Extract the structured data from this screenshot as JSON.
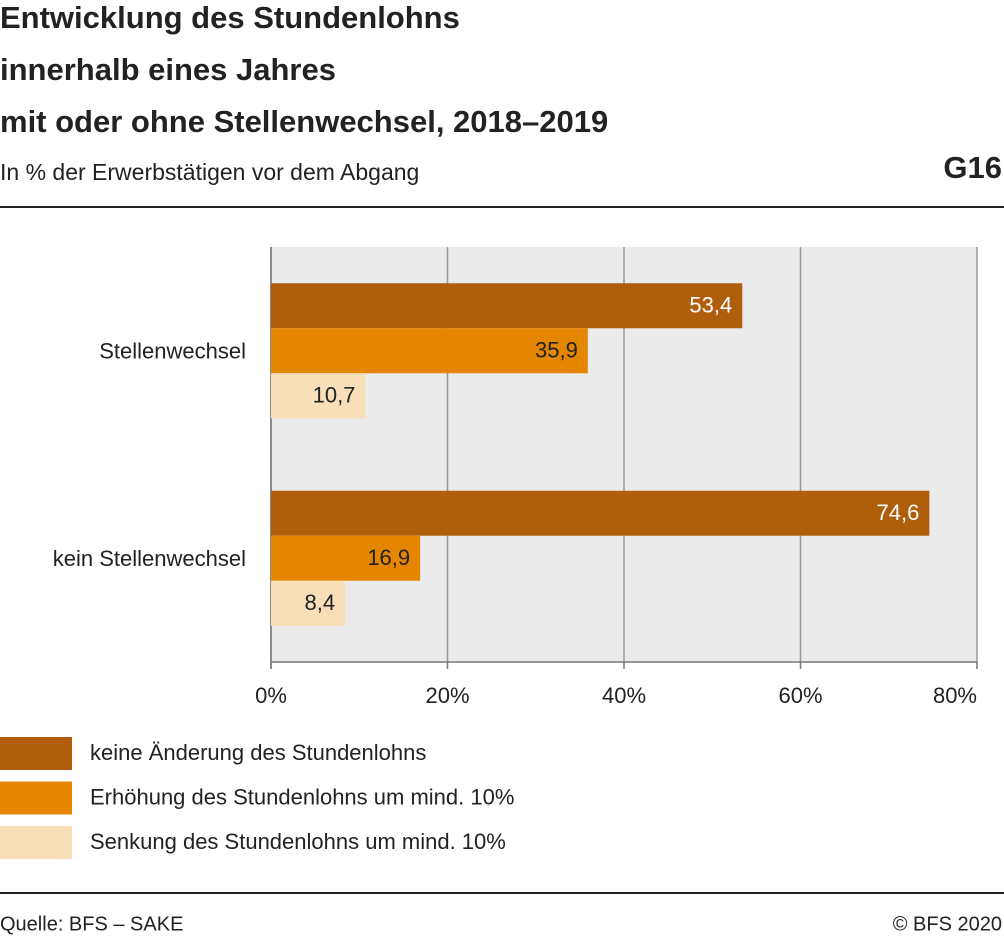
{
  "chart_data": {
    "type": "barh",
    "title": [
      "Entwicklung des Stundenlohns",
      "innerhalb eines Jahres",
      "mit oder ohne Stellenwechsel, 2018–2019"
    ],
    "subtitle": "In % der Erwerbstätigen vor dem Abgang",
    "chart_id": "G16",
    "categories": [
      "Stellenwechsel",
      "kein Stellenwechsel"
    ],
    "series": [
      {
        "name": "keine Änderung des Stundenlohns",
        "color": "#b05e0b",
        "label_color": "#ffffff",
        "values": [
          53.4,
          74.6
        ],
        "value_labels": [
          "53,4",
          "74,6"
        ]
      },
      {
        "name": "Erhöhung des Stundenlohns um mind. 10%",
        "color": "#e58600",
        "label_color": "#222222",
        "values": [
          35.9,
          16.9
        ],
        "value_labels": [
          "35,9",
          "16,9"
        ]
      },
      {
        "name": "Senkung des Stundenlohns um mind. 10%",
        "color": "#f8dfba",
        "label_color": "#222222",
        "values": [
          10.7,
          8.4
        ],
        "value_labels": [
          "10,7",
          "8,4"
        ]
      }
    ],
    "xlim": [
      0,
      80
    ],
    "xticks": [
      {
        "value": 0,
        "label": "0%"
      },
      {
        "value": 20,
        "label": "20%"
      },
      {
        "value": 40,
        "label": "40%"
      },
      {
        "value": 60,
        "label": "60%"
      },
      {
        "value": 80,
        "label": "80%"
      }
    ],
    "grid": true,
    "source": "Quelle: BFS – SAKE",
    "copyright": "© BFS 2020"
  }
}
